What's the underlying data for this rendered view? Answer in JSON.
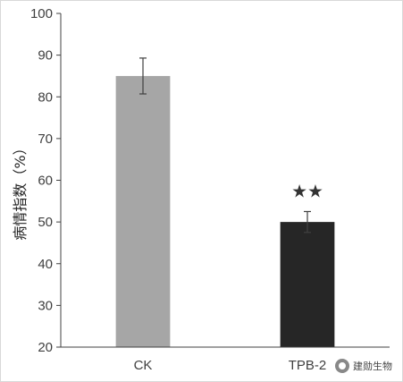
{
  "chart_data": {
    "type": "bar",
    "title": "",
    "xlabel": "",
    "ylabel": "病情指数（%）",
    "ylim": [
      20,
      100
    ],
    "yticks": [
      20,
      30,
      40,
      50,
      60,
      70,
      80,
      90,
      100
    ],
    "categories": [
      "CK",
      "TPB-2"
    ],
    "values": [
      85,
      50
    ],
    "errors": [
      4.3,
      2.5
    ],
    "colors": [
      "#a6a6a6",
      "#262626"
    ],
    "annotations": [
      "",
      "★★"
    ],
    "grid": false,
    "legend": "none"
  },
  "watermark": {
    "text": "建勋生物",
    "icon": "wechat-icon"
  }
}
